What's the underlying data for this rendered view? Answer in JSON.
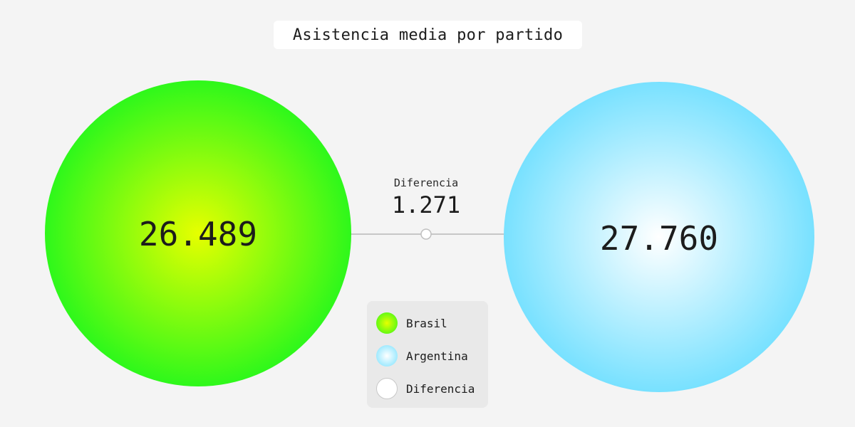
{
  "title": "Asistencia media por partido",
  "chart_data": {
    "type": "bubble",
    "title": "Asistencia media por partido",
    "series": [
      {
        "name": "Brasil",
        "value": 26489,
        "display": "26.489",
        "color_inner": "#e6ff00",
        "color_outer": "#2ef81b"
      },
      {
        "name": "Argentina",
        "value": 27760,
        "display": "27.760",
        "color_inner": "#ffffff",
        "color_outer": "#78e1ff"
      }
    ],
    "difference": {
      "label": "Diferencia",
      "value": 1271,
      "display": "1.271",
      "color": "#ffffff"
    }
  },
  "legend": {
    "items": [
      {
        "label": "Brasil"
      },
      {
        "label": "Argentina"
      },
      {
        "label": "Diferencia"
      }
    ]
  }
}
